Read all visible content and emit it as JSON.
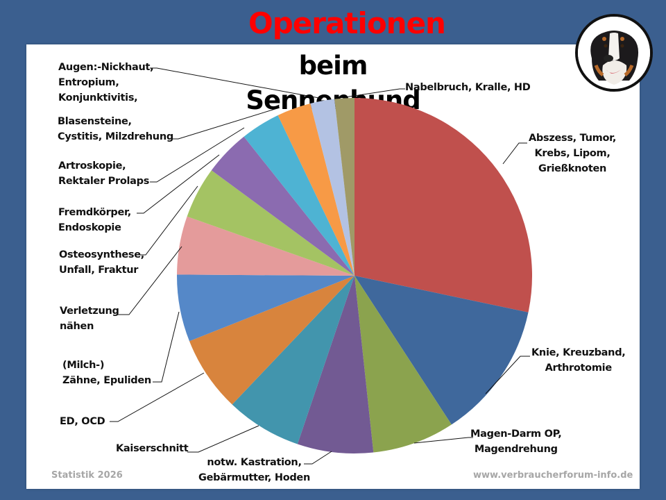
{
  "header": {
    "title": "Operationen",
    "subtitle": "beim Sennenhund"
  },
  "footer": {
    "left": "Statistik 2026",
    "right": "www.verbraucherforum-info.de"
  },
  "labels": {
    "abszess": [
      "Abszess, Tumor,",
      "Krebs, Lipom,",
      "Grießknoten"
    ],
    "knie": [
      "Knie, Kreuzband,",
      "Arthrotomie"
    ],
    "magen": [
      "Magen-Darm OP,",
      "Magendrehung"
    ],
    "kastration": [
      "notw. Kastration,",
      "Gebärmutter, Hoden"
    ],
    "kaiserschnitt": [
      "Kaiserschnitt"
    ],
    "edocd": [
      "ED, OCD"
    ],
    "zaehne": [
      "(Milch-)",
      "Zähne, Epuliden"
    ],
    "verletzung": [
      "Verletzung",
      "nähen"
    ],
    "osteo": [
      "Osteosynthese,",
      "Unfall, Fraktur"
    ],
    "fremd": [
      "Fremdkörper,",
      "Endoskopie"
    ],
    "artro": [
      "Artroskopie,",
      "Rektaler Prolaps"
    ],
    "blasen": [
      "Blasensteine,",
      "Cystitis, Milzdrehung"
    ],
    "augen": [
      "Augen:-Nickhaut,",
      "Entropium,",
      "Konjunktivitis,"
    ],
    "nabel": [
      "Nabelbruch, Kralle, HD"
    ]
  },
  "chart_data": {
    "type": "pie",
    "title": "Operationen beim Sennenhund",
    "start_angle_deg": 0,
    "direction": "clockwise",
    "categories": [
      "Abszess, Tumor, Krebs, Lipom, Grießknoten",
      "Knie, Kreuzband, Arthrotomie",
      "Magen-Darm OP, Magendrehung",
      "notw. Kastration, Gebärmutter, Hoden",
      "Kaiserschnitt",
      "ED, OCD",
      "(Milch-) Zähne, Epuliden",
      "Verletzung nähen",
      "Osteosynthese, Unfall, Fraktur",
      "Fremdkörper, Endoskopie",
      "Artroskopie, Rektaler Prolaps",
      "Blasensteine, Cystitis, Milzdrehung",
      "Augen:-Nickhaut, Entropium, Konjunktivitis,",
      "Nabelbruch, Kralle, HD"
    ],
    "values": [
      28.3,
      12.5,
      7.5,
      6.9,
      6.9,
      6.9,
      6.1,
      5.3,
      4.7,
      4.2,
      3.6,
      3.1,
      2.2,
      1.8
    ],
    "colors": [
      "#c0504d",
      "#3f689c",
      "#8ba34e",
      "#725a93",
      "#4295ad",
      "#d8843d",
      "#5588c8",
      "#e49b9b",
      "#a4c363",
      "#8b6bb0",
      "#4eb3d3",
      "#f79a46",
      "#b3c2e3",
      "#a09a67"
    ],
    "legend": "none (leader-line labels)"
  }
}
